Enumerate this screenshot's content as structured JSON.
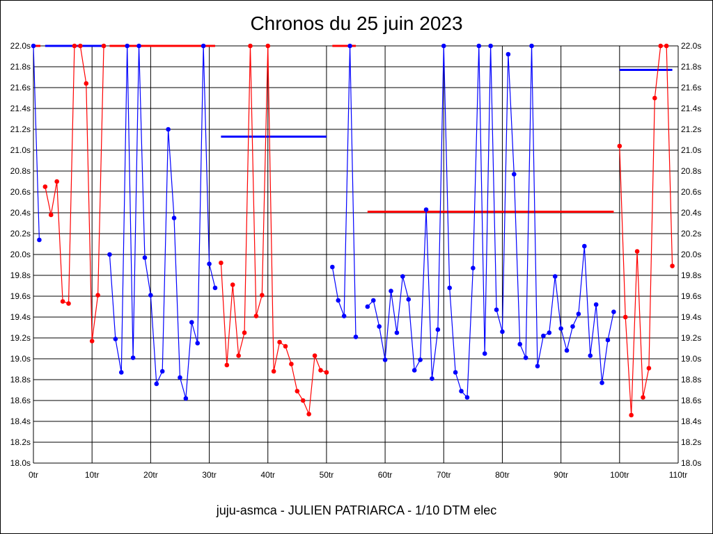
{
  "chart_data": {
    "type": "line",
    "title": "Chronos du 25 juin 2023",
    "subtitle": "juju-asmca - JULIEN PATRIARCA - 1/10 DTM elec",
    "xlabel": "",
    "ylabel": "",
    "xlim": [
      0,
      110
    ],
    "ylim": [
      18.0,
      22.0
    ],
    "grid": true,
    "x_ticks": [
      0,
      10,
      20,
      30,
      40,
      50,
      60,
      70,
      80,
      90,
      100,
      110
    ],
    "x_tick_labels": [
      "0tr",
      "10tr",
      "20tr",
      "30tr",
      "40tr",
      "50tr",
      "60tr",
      "70tr",
      "80tr",
      "90tr",
      "100tr",
      "110tr"
    ],
    "y_ticks": [
      18.0,
      18.2,
      18.4,
      18.6,
      18.8,
      19.0,
      19.2,
      19.4,
      19.6,
      19.8,
      20.0,
      20.2,
      20.4,
      20.6,
      20.8,
      21.0,
      21.2,
      21.4,
      21.6,
      21.8,
      22.0
    ],
    "y_tick_labels": [
      "18.0s",
      "18.2s",
      "18.4s",
      "18.6s",
      "18.8s",
      "19.0s",
      "19.2s",
      "19.4s",
      "19.6s",
      "19.8s",
      "20.0s",
      "20.2s",
      "20.4s",
      "20.6s",
      "20.8s",
      "21.0s",
      "21.2s",
      "21.4s",
      "21.6s",
      "21.8s",
      "22.0s"
    ],
    "series": [
      {
        "name": "blue-1",
        "color": "#0000ff",
        "laps": [
          0,
          1
        ],
        "values": [
          22.0,
          20.14
        ]
      },
      {
        "name": "red-1",
        "color": "#ff0000",
        "laps": [
          2,
          3,
          4,
          5,
          6,
          7,
          8,
          9,
          10,
          11,
          12
        ],
        "values": [
          20.65,
          20.38,
          20.7,
          19.55,
          19.53,
          22.0,
          22.0,
          21.64,
          19.17,
          19.61,
          22.0
        ]
      },
      {
        "name": "blue-2",
        "color": "#0000ff",
        "laps": [
          13,
          14,
          15,
          16,
          17,
          18,
          19,
          20,
          21,
          22,
          23,
          24,
          25,
          26,
          27,
          28,
          29,
          30,
          31
        ],
        "values": [
          20.0,
          19.19,
          18.87,
          22.0,
          19.01,
          22.0,
          19.97,
          19.61,
          18.76,
          18.88,
          21.2,
          20.35,
          18.82,
          18.62,
          19.35,
          19.15,
          22.0,
          19.91,
          19.68
        ]
      },
      {
        "name": "red-2",
        "color": "#ff0000",
        "laps": [
          32,
          33,
          34,
          35,
          36,
          37,
          38,
          39,
          40,
          41,
          42,
          43,
          44,
          45,
          46,
          47,
          48,
          49,
          50
        ],
        "values": [
          19.92,
          18.94,
          19.71,
          19.03,
          19.25,
          22.0,
          19.41,
          19.61,
          22.0,
          18.88,
          19.16,
          19.12,
          18.95,
          18.69,
          18.6,
          18.47,
          19.03,
          18.89,
          18.87
        ]
      },
      {
        "name": "blue-3",
        "color": "#0000ff",
        "laps": [
          51,
          52,
          53,
          54,
          55
        ],
        "values": [
          19.88,
          19.56,
          19.41,
          22.0,
          19.21
        ]
      },
      {
        "name": "blue-4",
        "color": "#0000ff",
        "laps": [
          57,
          58,
          59,
          60,
          61,
          62,
          63,
          64,
          65,
          66,
          67,
          68,
          69,
          70,
          71,
          72,
          73,
          74,
          75,
          76,
          77,
          78,
          79,
          80,
          81,
          82,
          83,
          84,
          85,
          86,
          87,
          88,
          89,
          90,
          91,
          92,
          93,
          94,
          95,
          96,
          97,
          98,
          99
        ],
        "values": [
          19.5,
          19.56,
          19.31,
          18.99,
          19.65,
          19.25,
          19.79,
          19.57,
          18.89,
          18.99,
          20.43,
          18.81,
          19.28,
          22.0,
          19.68,
          18.87,
          18.69,
          18.63,
          19.87,
          22.0,
          19.05,
          22.0,
          19.47,
          19.26,
          21.92,
          20.77,
          19.14,
          19.01,
          22.0,
          18.93,
          19.22,
          19.25,
          19.79,
          19.29,
          19.08,
          19.31,
          19.43,
          20.08,
          19.03,
          19.52,
          18.77,
          19.18,
          19.45
        ]
      },
      {
        "name": "red-3",
        "color": "#ff0000",
        "laps": [
          100,
          101,
          102,
          103,
          104,
          105,
          106,
          107,
          108,
          109
        ],
        "values": [
          21.04,
          19.4,
          18.46,
          20.03,
          18.63,
          18.91,
          21.5,
          22.0,
          22.0,
          19.89
        ]
      }
    ],
    "reference_lines": [
      {
        "color": "#ff0000",
        "from": 0,
        "to": 1.2,
        "value": 22.0
      },
      {
        "color": "#0000ff",
        "from": 2,
        "to": 12,
        "value": 22.0
      },
      {
        "color": "#ff0000",
        "from": 13,
        "to": 31,
        "value": 22.0
      },
      {
        "color": "#ff0000",
        "from": 51,
        "to": 55,
        "value": 22.0
      },
      {
        "color": "#0000ff",
        "from": 32,
        "to": 50,
        "value": 21.13
      },
      {
        "color": "#ff0000",
        "from": 57,
        "to": 99,
        "value": 20.41
      },
      {
        "color": "#0000ff",
        "from": 100,
        "to": 109,
        "value": 21.77
      }
    ]
  }
}
